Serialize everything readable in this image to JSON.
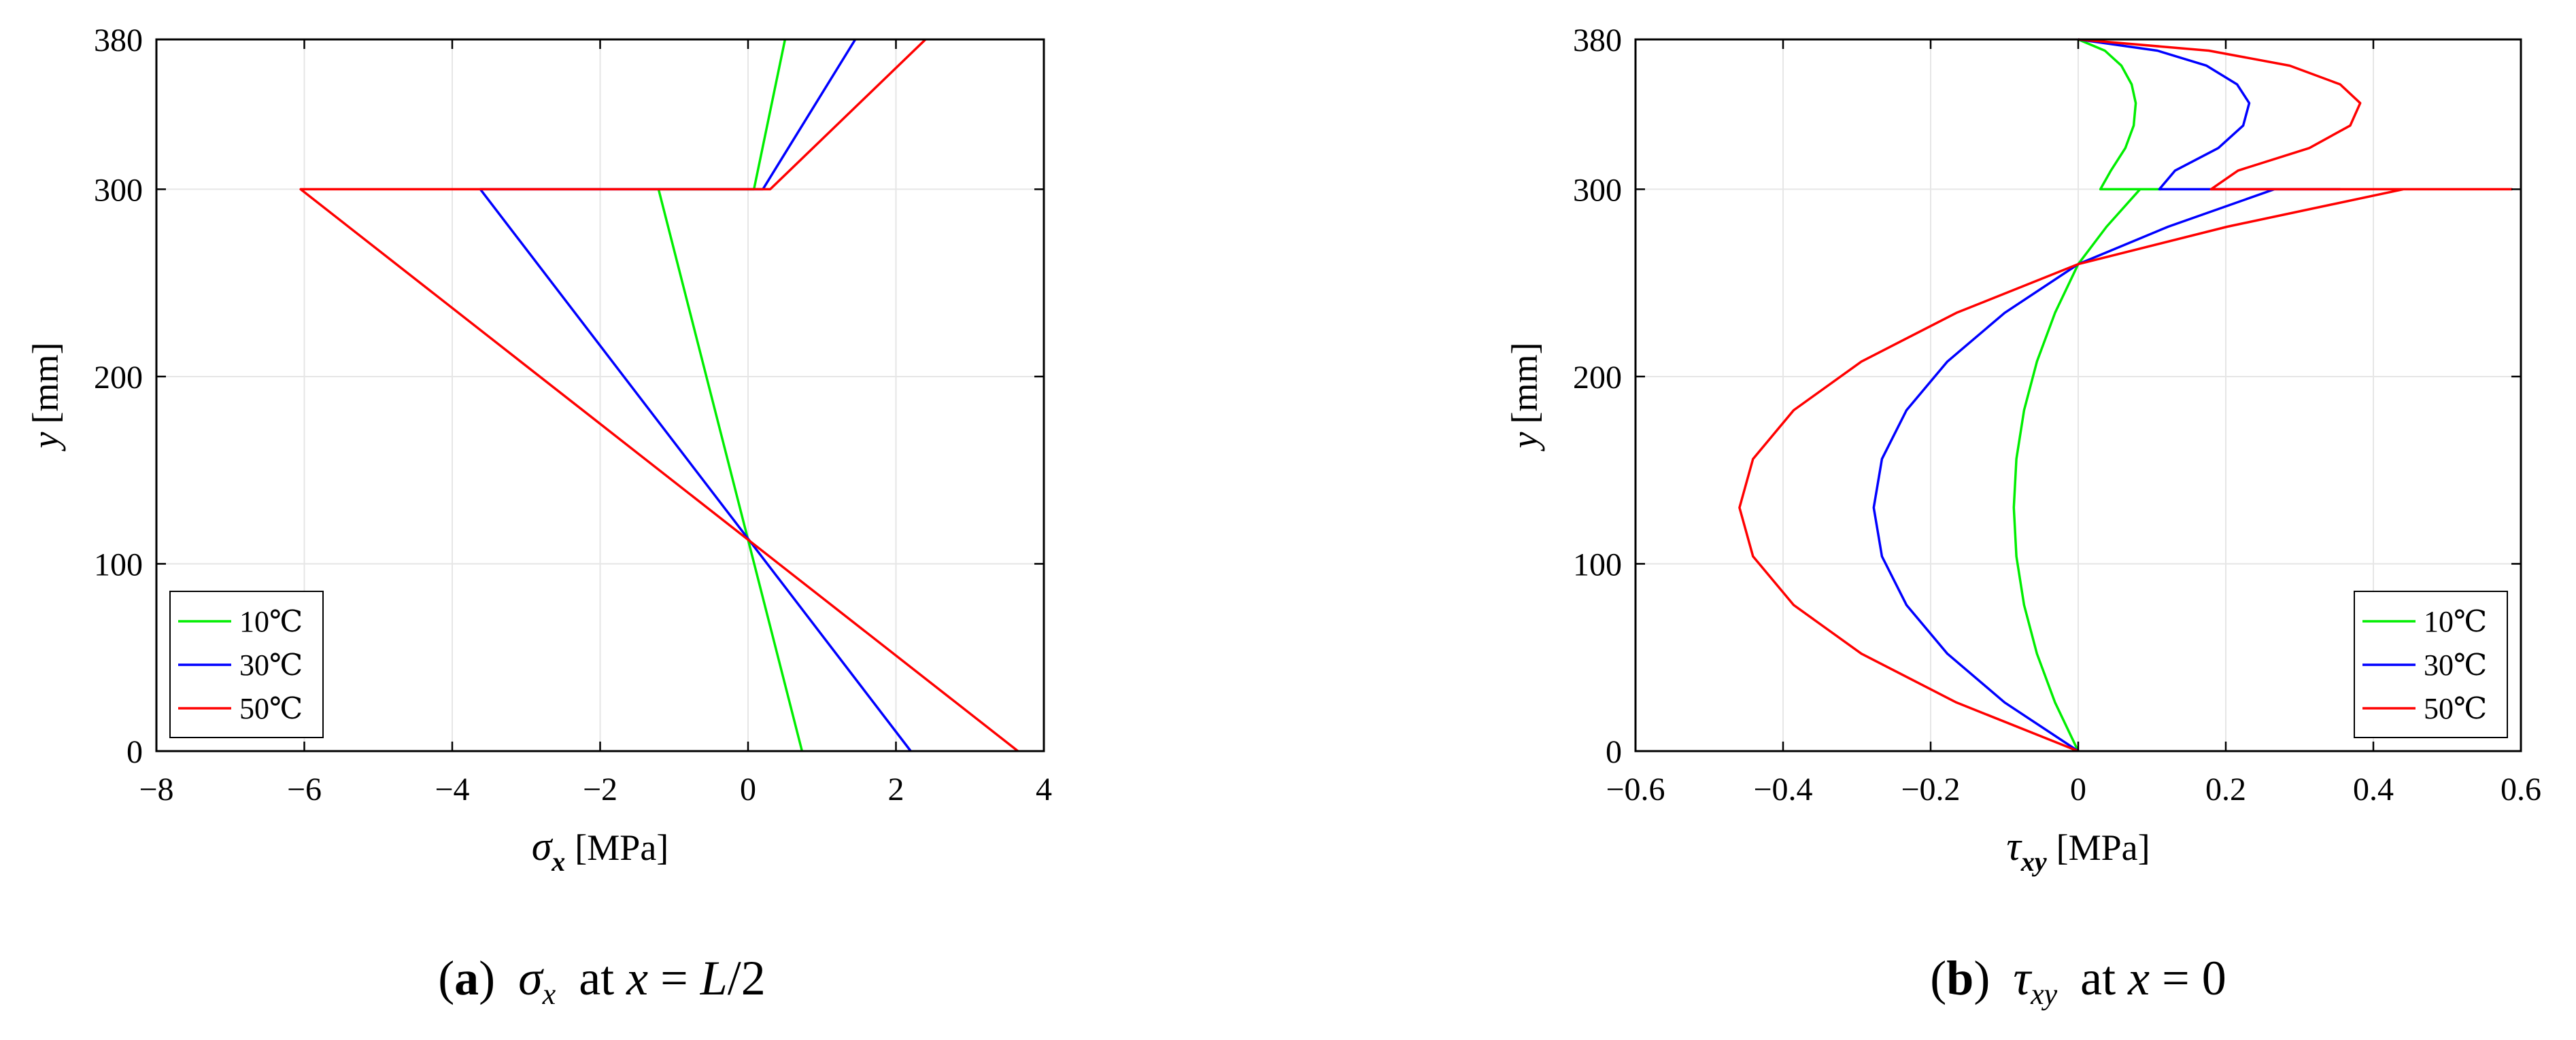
{
  "figure": {
    "captions": [
      {
        "letter": "a",
        "symbol": "σ",
        "sub": "x",
        "rest": "at x = L/2"
      },
      {
        "letter": "b",
        "symbol": "τ",
        "sub": "xy",
        "rest": "at x = 0"
      }
    ]
  },
  "chart_data": [
    {
      "type": "line",
      "xlabel": {
        "symbol": "σ",
        "sub": "x",
        "unit": "[MPa]"
      },
      "ylabel": {
        "symbol": "y",
        "unit": "[mm]"
      },
      "xlim": [
        -8,
        4
      ],
      "ylim": [
        0,
        380
      ],
      "xticks": [
        -8,
        -6,
        -4,
        -2,
        0,
        2,
        4
      ],
      "yticks": [
        0,
        100,
        200,
        300,
        380
      ],
      "grid": true,
      "legend_position": "bottom-left",
      "colors": {
        "10℃": "#00ee00",
        "30℃": "#0000ff",
        "50℃": "#ff0000"
      },
      "series": [
        {
          "name": "10℃",
          "color": "#00ee00",
          "x": [
            0.73,
            -1.21,
            0.08,
            0.5
          ],
          "y": [
            0,
            300,
            300,
            380
          ]
        },
        {
          "name": "30℃",
          "color": "#0000ff",
          "x": [
            2.2,
            -3.62,
            0.2,
            1.45
          ],
          "y": [
            0,
            300,
            300,
            380
          ]
        },
        {
          "name": "50℃",
          "color": "#ff0000",
          "x": [
            3.65,
            -6.05,
            0.3,
            2.4
          ],
          "y": [
            0,
            300,
            300,
            380
          ]
        }
      ]
    },
    {
      "type": "line",
      "xlabel": {
        "symbol": "τ",
        "sub": "xy",
        "unit": "[MPa]"
      },
      "ylabel": {
        "symbol": "y",
        "unit": "[mm]"
      },
      "xlim": [
        -0.6,
        0.6
      ],
      "ylim": [
        0,
        380
      ],
      "xticks": [
        -0.6,
        -0.4,
        -0.2,
        0,
        0.2,
        0.4,
        0.6
      ],
      "yticks": [
        0,
        100,
        200,
        300,
        380
      ],
      "grid": true,
      "legend_position": "bottom-right",
      "colors": {
        "10℃": "#00ee00",
        "30℃": "#0000ff",
        "50℃": "#ff0000"
      },
      "series": [
        {
          "name": "10℃",
          "color": "#00ee00",
          "x": [
            0,
            -0.0314,
            -0.0559,
            -0.0734,
            -0.0838,
            -0.0873,
            -0.0838,
            -0.0734,
            -0.0559,
            -0.0314,
            0,
            0.0384,
            0.0838,
            0.1117,
            0.03,
            0.0443,
            0.0639,
            0.0752,
            0.078,
            0.0724,
            0.0585,
            0.0361,
            0
          ],
          "y": [
            0,
            26,
            52,
            78,
            104,
            130,
            156,
            182,
            208,
            234,
            260,
            280,
            300,
            300,
            300,
            310,
            322,
            334,
            346,
            356,
            366,
            374,
            380
          ]
        },
        {
          "name": "30℃",
          "color": "#0000ff",
          "x": [
            0,
            -0.0997,
            -0.1773,
            -0.2327,
            -0.266,
            -0.2771,
            -0.266,
            -0.2327,
            -0.1773,
            -0.0997,
            0,
            0.1219,
            0.266,
            0.3546,
            0.11,
            0.1313,
            0.1899,
            0.2236,
            0.2318,
            0.2153,
            0.1739,
            0.1073,
            0
          ],
          "y": [
            0,
            26,
            52,
            78,
            104,
            130,
            156,
            182,
            208,
            234,
            260,
            280,
            300,
            300,
            300,
            310,
            322,
            334,
            346,
            356,
            366,
            374,
            380
          ]
        },
        {
          "name": "50℃",
          "color": "#ff0000",
          "x": [
            0,
            -0.1652,
            -0.2938,
            -0.3856,
            -0.4407,
            -0.4591,
            -0.4407,
            -0.3856,
            -0.2938,
            -0.1652,
            0,
            0.202,
            0.4407,
            0.5875,
            0.18,
            0.2167,
            0.3132,
            0.3687,
            0.3822,
            0.355,
            0.2867,
            0.177,
            0
          ],
          "y": [
            0,
            26,
            52,
            78,
            104,
            130,
            156,
            182,
            208,
            234,
            260,
            280,
            300,
            300,
            300,
            310,
            322,
            334,
            346,
            356,
            366,
            374,
            380
          ]
        }
      ]
    }
  ]
}
